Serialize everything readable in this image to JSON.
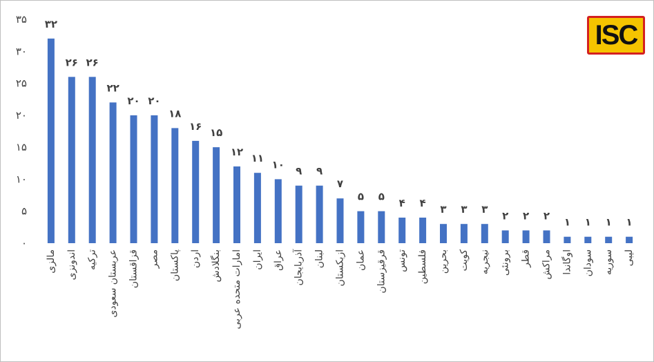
{
  "logo": {
    "text": "ISC"
  },
  "chart_data": {
    "type": "bar",
    "title": "",
    "xlabel": "",
    "ylabel": "",
    "ylim": [
      0,
      35
    ],
    "yticks": [
      0,
      5,
      10,
      15,
      20,
      25,
      30,
      35
    ],
    "ytick_labels": [
      "۰",
      "۵",
      "۱۰",
      "۱۵",
      "۲۰",
      "۲۵",
      "۳۰",
      "۳۵"
    ],
    "grid": false,
    "legend": "none",
    "bar_color": "#4472c4",
    "categories": [
      "مالزی",
      "اندونزی",
      "ترکیه",
      "عربستان سعودی",
      "قزاقستان",
      "مصر",
      "پاکستان",
      "اردن",
      "بنگلادش",
      "امارات متحده عربی",
      "ایران",
      "عراق",
      "آذربایجان",
      "لبنان",
      "ازبکستان",
      "عمان",
      "قرقیزستان",
      "تونس",
      "فلسطین",
      "بحرین",
      "کویت",
      "نیجریه",
      "برونئی",
      "قطر",
      "مراکش",
      "اوگاندا",
      "سودان",
      "سوریه",
      "لیبی"
    ],
    "values": [
      32,
      26,
      26,
      22,
      20,
      20,
      18,
      16,
      15,
      12,
      11,
      10,
      9,
      9,
      7,
      5,
      5,
      4,
      4,
      3,
      3,
      3,
      2,
      2,
      2,
      1,
      1,
      1,
      1
    ],
    "data_labels": [
      "۳۲",
      "۲۶",
      "۲۶",
      "۲۲",
      "۲۰",
      "۲۰",
      "۱۸",
      "۱۶",
      "۱۵",
      "۱۲",
      "۱۱",
      "۱۰",
      "۹",
      "۹",
      "۷",
      "۵",
      "۵",
      "۴",
      "۴",
      "۳",
      "۳",
      "۳",
      "۲",
      "۲",
      "۲",
      "۱",
      "۱",
      "۱",
      "۱"
    ]
  }
}
